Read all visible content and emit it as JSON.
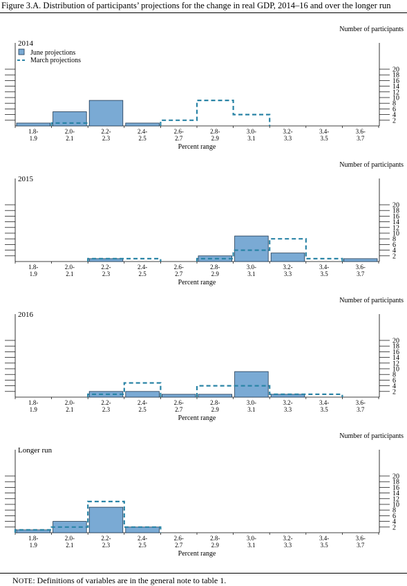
{
  "figure_title": "Figure 3.A. Distribution of participants’ projections for the change in real GDP, 2014–16 and over the longer run",
  "note": {
    "prefix": "Note",
    "text": ": Definitions of variables are in the general note to table 1."
  },
  "colors": {
    "june_fill": "#7aaad4",
    "june_stroke": "#1c3650",
    "march_stroke": "#2a84a6",
    "axis": "#000000"
  },
  "chart_data": [
    {
      "type": "bar",
      "title": "2014",
      "ylabel": "Number of participants",
      "xlabel": "Percent range",
      "ylim": [
        0,
        20
      ],
      "yticks": [
        2,
        4,
        6,
        8,
        10,
        12,
        14,
        16,
        18,
        20
      ],
      "categories": [
        [
          "1.8-",
          "1.9"
        ],
        [
          "2.0-",
          "2.1"
        ],
        [
          "2.2-",
          "2.3"
        ],
        [
          "2.4-",
          "2.5"
        ],
        [
          "2.6-",
          "2.7"
        ],
        [
          "2.8-",
          "2.9"
        ],
        [
          "3.0-",
          "3.1"
        ],
        [
          "3.2-",
          "3.3"
        ],
        [
          "3.4-",
          "3.5"
        ],
        [
          "3.6-",
          "3.7"
        ]
      ],
      "legend_placement": "top-left",
      "series": [
        {
          "name": "June projections",
          "style": "bar",
          "values": [
            1,
            5,
            9,
            1,
            0,
            0,
            0,
            0,
            0,
            0
          ]
        },
        {
          "name": "March projections",
          "style": "dashed-step",
          "values": [
            0,
            1,
            0,
            0,
            2,
            9,
            4,
            0,
            0,
            0
          ]
        }
      ]
    },
    {
      "type": "bar",
      "title": "2015",
      "ylabel": "Number of participants",
      "xlabel": "Percent range",
      "ylim": [
        0,
        20
      ],
      "yticks": [
        2,
        4,
        6,
        8,
        10,
        12,
        14,
        16,
        18,
        20
      ],
      "categories": [
        [
          "1.8-",
          "1.9"
        ],
        [
          "2.0-",
          "2.1"
        ],
        [
          "2.2-",
          "2.3"
        ],
        [
          "2.4-",
          "2.5"
        ],
        [
          "2.6-",
          "2.7"
        ],
        [
          "2.8-",
          "2.9"
        ],
        [
          "3.0-",
          "3.1"
        ],
        [
          "3.2-",
          "3.3"
        ],
        [
          "3.4-",
          "3.5"
        ],
        [
          "3.6-",
          "3.7"
        ]
      ],
      "series": [
        {
          "style": "bar",
          "values": [
            0,
            0,
            1,
            0,
            0,
            2,
            9,
            3,
            0,
            1
          ]
        },
        {
          "style": "dashed-step",
          "values": [
            0,
            0,
            1,
            1,
            0,
            1,
            4,
            8,
            1,
            0
          ]
        }
      ]
    },
    {
      "type": "bar",
      "title": "2016",
      "ylabel": "Number of participants",
      "xlabel": "Percent range",
      "ylim": [
        0,
        20
      ],
      "yticks": [
        2,
        4,
        6,
        8,
        10,
        12,
        14,
        16,
        18,
        20
      ],
      "categories": [
        [
          "1.8-",
          "1.9"
        ],
        [
          "2.0-",
          "2.1"
        ],
        [
          "2.2-",
          "2.3"
        ],
        [
          "2.4-",
          "2.5"
        ],
        [
          "2.6-",
          "2.7"
        ],
        [
          "2.8-",
          "2.9"
        ],
        [
          "3.0-",
          "3.1"
        ],
        [
          "3.2-",
          "3.3"
        ],
        [
          "3.4-",
          "3.5"
        ],
        [
          "3.6-",
          "3.7"
        ]
      ],
      "series": [
        {
          "style": "bar",
          "values": [
            0,
            0,
            2,
            2,
            1,
            1,
            9,
            1,
            0,
            0
          ]
        },
        {
          "style": "dashed-step",
          "values": [
            0,
            0,
            1,
            5,
            0,
            4,
            4,
            1,
            1,
            0
          ]
        }
      ]
    },
    {
      "type": "bar",
      "title": "Longer run",
      "ylabel": "Number of participants",
      "xlabel": "Percent range",
      "ylim": [
        0,
        20
      ],
      "yticks": [
        2,
        4,
        6,
        8,
        10,
        12,
        14,
        16,
        18,
        20
      ],
      "categories": [
        [
          "1.8-",
          "1.9"
        ],
        [
          "2.0-",
          "2.1"
        ],
        [
          "2.2-",
          "2.3"
        ],
        [
          "2.4-",
          "2.5"
        ],
        [
          "2.6-",
          "2.7"
        ],
        [
          "2.8-",
          "2.9"
        ],
        [
          "3.0-",
          "3.1"
        ],
        [
          "3.2-",
          "3.3"
        ],
        [
          "3.4-",
          "3.5"
        ],
        [
          "3.6-",
          "3.7"
        ]
      ],
      "series": [
        {
          "style": "bar",
          "values": [
            1,
            4,
            9,
            2,
            0,
            0,
            0,
            0,
            0,
            0
          ]
        },
        {
          "style": "dashed-step",
          "values": [
            1,
            2,
            11,
            2,
            0,
            0,
            0,
            0,
            0,
            0
          ]
        }
      ]
    }
  ]
}
